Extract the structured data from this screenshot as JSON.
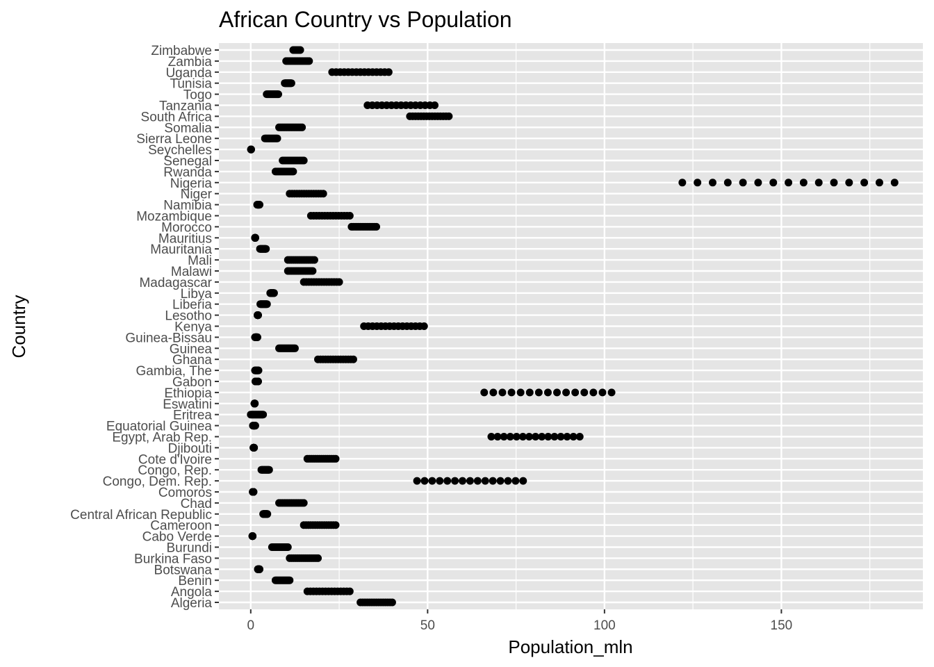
{
  "chart_data": {
    "type": "scatter",
    "title": "African Country vs Population",
    "xlabel": "Population_mln",
    "ylabel": "Country",
    "xlim": [
      -9,
      190
    ],
    "x_ticks": [
      0,
      50,
      100,
      150
    ],
    "x_tick_labels": [
      "0",
      "50",
      "100",
      "150"
    ],
    "grid": true,
    "panel_background": "#e5e5e5",
    "grid_color": "#ffffff",
    "point_color": "#000000",
    "points_per_country": 15,
    "categories": [
      "Algeria",
      "Angola",
      "Benin",
      "Botswana",
      "Burkina Faso",
      "Burundi",
      "Cabo Verde",
      "Cameroon",
      "Central African Republic",
      "Chad",
      "Comoros",
      "Congo, Dem. Rep.",
      "Congo, Rep.",
      "Cote d'Ivoire",
      "Djibouti",
      "Egypt, Arab Rep.",
      "Equatorial Guinea",
      "Eritrea",
      "Eswatini",
      "Ethiopia",
      "Gabon",
      "Gambia, The",
      "Ghana",
      "Guinea",
      "Guinea-Bissau",
      "Kenya",
      "Lesotho",
      "Liberia",
      "Libya",
      "Madagascar",
      "Malawi",
      "Mali",
      "Mauritania",
      "Mauritius",
      "Morocco",
      "Mozambique",
      "Namibia",
      "Niger",
      "Nigeria",
      "Rwanda",
      "Senegal",
      "Seychelles",
      "Sierra Leone",
      "Somalia",
      "South Africa",
      "Tanzania",
      "Togo",
      "Tunisia",
      "Uganda",
      "Zambia",
      "Zimbabwe"
    ],
    "ranges": [
      [
        31,
        40
      ],
      [
        16,
        28
      ],
      [
        7,
        11
      ],
      [
        2,
        2.5
      ],
      [
        11,
        19
      ],
      [
        6,
        10.5
      ],
      [
        0.45,
        0.55
      ],
      [
        15,
        24
      ],
      [
        3.5,
        4.7
      ],
      [
        8,
        15
      ],
      [
        0.55,
        0.8
      ],
      [
        47,
        77
      ],
      [
        3,
        5.2
      ],
      [
        16,
        24
      ],
      [
        0.75,
        0.95
      ],
      [
        68,
        93
      ],
      [
        0.6,
        1.3
      ],
      [
        0,
        3.5
      ],
      [
        1.05,
        1.15
      ],
      [
        66,
        102
      ],
      [
        1.3,
        2.1
      ],
      [
        1.2,
        2.2
      ],
      [
        19,
        29
      ],
      [
        8,
        12.5
      ],
      [
        1.2,
        1.9
      ],
      [
        32,
        49
      ],
      [
        1.9,
        2.1
      ],
      [
        2.7,
        4.6
      ],
      [
        5.5,
        6.6
      ],
      [
        15,
        25
      ],
      [
        10.5,
        17.5
      ],
      [
        10.5,
        18
      ],
      [
        2.6,
        4.3
      ],
      [
        1.2,
        1.3
      ],
      [
        28.5,
        35.5
      ],
      [
        17,
        28
      ],
      [
        1.8,
        2.5
      ],
      [
        11,
        20.5
      ],
      [
        122,
        182
      ],
      [
        7,
        12
      ],
      [
        9,
        15
      ],
      [
        0.08,
        0.1
      ],
      [
        4,
        7.5
      ],
      [
        8,
        14.5
      ],
      [
        45,
        56
      ],
      [
        33,
        52
      ],
      [
        4.5,
        7.8
      ],
      [
        9.6,
        11.5
      ],
      [
        23,
        39
      ],
      [
        10,
        16.5
      ],
      [
        12,
        14
      ]
    ]
  }
}
